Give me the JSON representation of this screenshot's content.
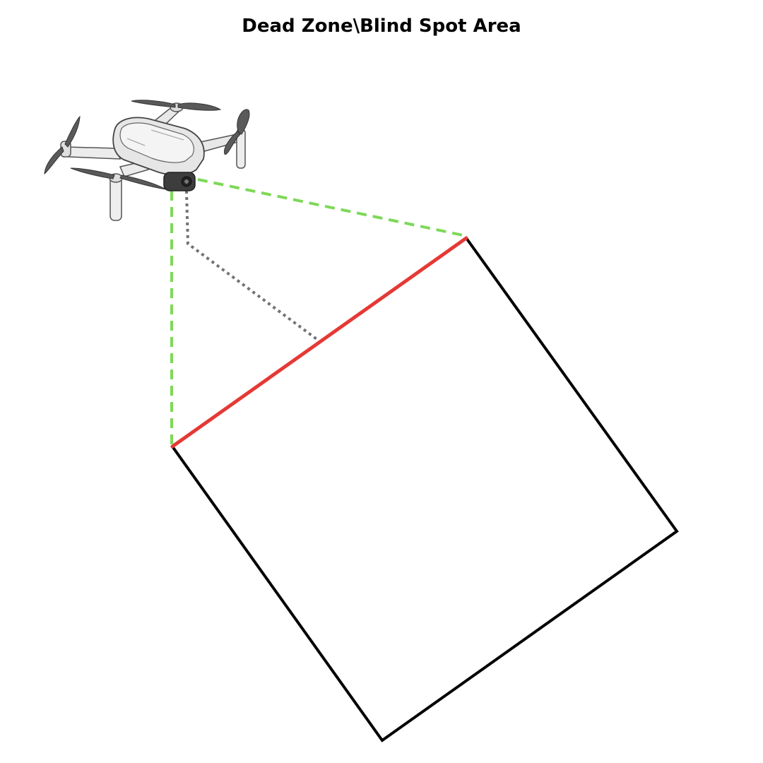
{
  "title": "Dead Zone\\Blind Spot Area",
  "colors": {
    "field_of_view": "#7dd957",
    "dead_zone_edge": "#e53935",
    "nadir_line": "#737373",
    "ground_area": "#000000",
    "drone_body": "#e6e6e6",
    "propeller": "#5a5a5a"
  }
}
